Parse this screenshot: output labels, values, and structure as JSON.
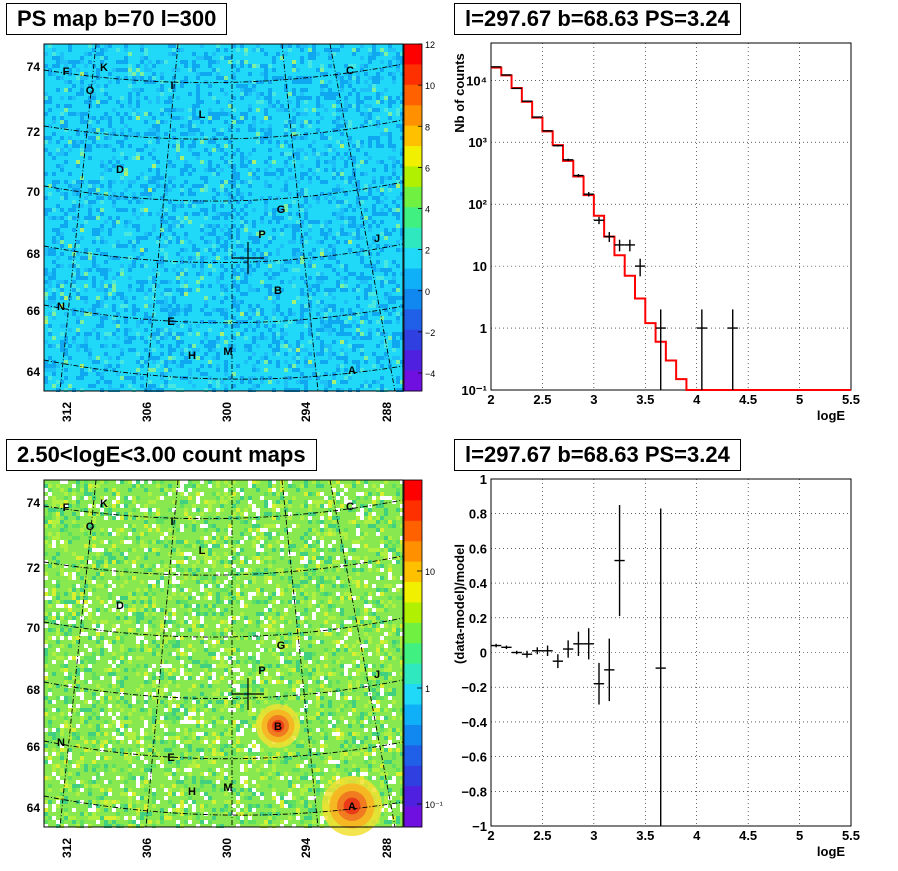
{
  "panels": {
    "ps_map": {
      "title": "PS map b=70 l=300",
      "colorbar_ticks": [
        "12",
        "10",
        "8",
        "6",
        "4",
        "2",
        "0",
        "−2",
        "−4"
      ]
    },
    "count_map": {
      "title": "2.50<logE<3.00 count maps",
      "colorbar_ticks": [
        "10",
        "1",
        "10⁻¹"
      ]
    },
    "spectrum": {
      "title": "l=297.67 b=68.63 PS=3.24"
    },
    "residual": {
      "title": "l=297.67 b=68.63 PS=3.24"
    }
  },
  "map_axes": {
    "y_ticks": [
      "74",
      "72",
      "70",
      "68",
      "66",
      "64"
    ],
    "x_ticks": [
      "312",
      "306",
      "300",
      "294",
      "288"
    ]
  },
  "sources": [
    "F",
    "K",
    "O",
    "I",
    "L",
    "C",
    "D",
    "G",
    "P",
    "J",
    "N",
    "B",
    "E",
    "M",
    "H",
    "A"
  ],
  "colors": {
    "model": "#ff0000",
    "data": "#000000",
    "map_bg_ps": "#20d8f8",
    "map_bg_counts": "#88e850"
  },
  "chart_data": [
    {
      "type": "line",
      "title": "l=297.67 b=68.63 PS=3.24",
      "xlabel": "logE",
      "ylabel": "Nb of counts",
      "xlim": [
        2,
        5.5
      ],
      "ylim": [
        0.1,
        40000
      ],
      "yscale": "log",
      "grid": true,
      "x_ticks": [
        "2",
        "2.5",
        "3",
        "3.5",
        "4",
        "4.5",
        "5",
        "5.5"
      ],
      "y_ticks": [
        "10⁴",
        "10³",
        "10²",
        "10",
        "1",
        "10⁻¹"
      ],
      "series": [
        {
          "kind": "model_histogram",
          "x": [
            2.0,
            2.1,
            2.2,
            2.3,
            2.4,
            2.5,
            2.6,
            2.7,
            2.8,
            2.9,
            3.0,
            3.1,
            3.2,
            3.3,
            3.4,
            3.5,
            3.6,
            3.7,
            3.8,
            3.9,
            4.0,
            4.1,
            4.2,
            4.3,
            4.4,
            4.5,
            4.6,
            4.7,
            4.8,
            4.9,
            5.0,
            5.1,
            5.2,
            5.3,
            5.4
          ],
          "values": [
            16000,
            12000,
            7500,
            4500,
            2500,
            1500,
            900,
            500,
            280,
            140,
            65,
            30,
            15,
            7,
            3,
            1.2,
            0.6,
            0.3,
            0.15,
            0.1,
            0.1,
            0.1,
            0.1,
            0.1,
            0.1,
            0.1,
            0.1,
            0.1,
            0.1,
            0.1,
            0.1,
            0.1,
            0.1,
            0.1,
            0.1
          ]
        },
        {
          "kind": "data_points",
          "x": [
            2.05,
            2.15,
            2.25,
            2.35,
            2.45,
            2.55,
            2.65,
            2.75,
            2.85,
            2.95,
            3.05,
            3.15,
            3.25,
            3.35,
            3.45,
            3.65,
            4.05,
            4.35
          ],
          "values": [
            16500,
            12200,
            7400,
            4600,
            2550,
            1530,
            880,
            520,
            290,
            145,
            55,
            30,
            22,
            22,
            10,
            1,
            1,
            1
          ]
        }
      ]
    },
    {
      "type": "scatter",
      "title": "l=297.67 b=68.63 PS=3.24",
      "xlabel": "logE",
      "ylabel": "(data-model)/model",
      "xlim": [
        2,
        5.5
      ],
      "ylim": [
        -1,
        1
      ],
      "grid": true,
      "x_ticks": [
        "2",
        "2.5",
        "3",
        "3.5",
        "4",
        "4.5",
        "5",
        "5.5"
      ],
      "y_ticks": [
        "1",
        "0.8",
        "0.6",
        "0.4",
        "0.2",
        "0",
        "−0.2",
        "−0.4",
        "−0.6",
        "−0.8",
        "−1"
      ],
      "series": [
        {
          "kind": "residual_points",
          "x": [
            2.05,
            2.15,
            2.25,
            2.35,
            2.45,
            2.55,
            2.65,
            2.75,
            2.85,
            2.95,
            3.05,
            3.15,
            3.25,
            3.65
          ],
          "values": [
            0.04,
            0.03,
            0.0,
            -0.01,
            0.01,
            0.01,
            -0.05,
            0.02,
            0.05,
            0.05,
            -0.18,
            -0.1,
            0.53,
            -0.09
          ],
          "errors": [
            0.01,
            0.01,
            0.01,
            0.02,
            0.02,
            0.03,
            0.04,
            0.05,
            0.07,
            0.09,
            0.12,
            0.18,
            0.32,
            0.92
          ]
        }
      ]
    }
  ]
}
